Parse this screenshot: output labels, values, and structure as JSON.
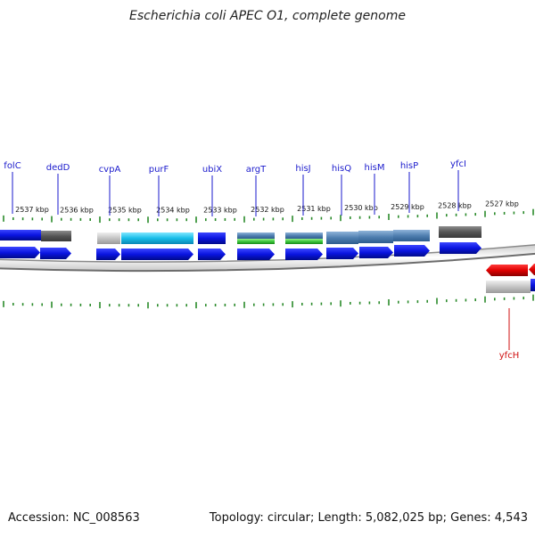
{
  "title": "Escherichia coli APEC O1, complete genome",
  "footer": {
    "accession": "Accession: NC_008563",
    "summary": "Topology: circular; Length: 5,082,025 bp; Genes: 4,543"
  },
  "colors": {
    "forward_gene": "#0a14e0",
    "reverse_gene": "#e00000",
    "label_blue": "#1a1acc",
    "label_red": "#d01010",
    "tick": "#2a8a2a",
    "backbone": "#7a7a7a"
  },
  "scale": {
    "unit": "kbp",
    "ticks": [
      "2537 kbp",
      "2536 kbp",
      "2535 kbp",
      "2534 kbp",
      "2533 kbp",
      "2532 kbp",
      "2531 kbp",
      "2530 kbp",
      "2529 kbp",
      "2528 kbp",
      "2527 kbp"
    ]
  },
  "genes": [
    {
      "name": "folC",
      "strand": "forward"
    },
    {
      "name": "dedD",
      "strand": "forward"
    },
    {
      "name": "cvpA",
      "strand": "forward"
    },
    {
      "name": "purF",
      "strand": "forward"
    },
    {
      "name": "ubiX",
      "strand": "forward"
    },
    {
      "name": "argT",
      "strand": "forward"
    },
    {
      "name": "hisJ",
      "strand": "forward"
    },
    {
      "name": "hisQ",
      "strand": "forward"
    },
    {
      "name": "hisM",
      "strand": "forward"
    },
    {
      "name": "hisP",
      "strand": "forward"
    },
    {
      "name": "yfcI",
      "strand": "forward"
    },
    {
      "name": "yfcH",
      "strand": "reverse"
    }
  ]
}
